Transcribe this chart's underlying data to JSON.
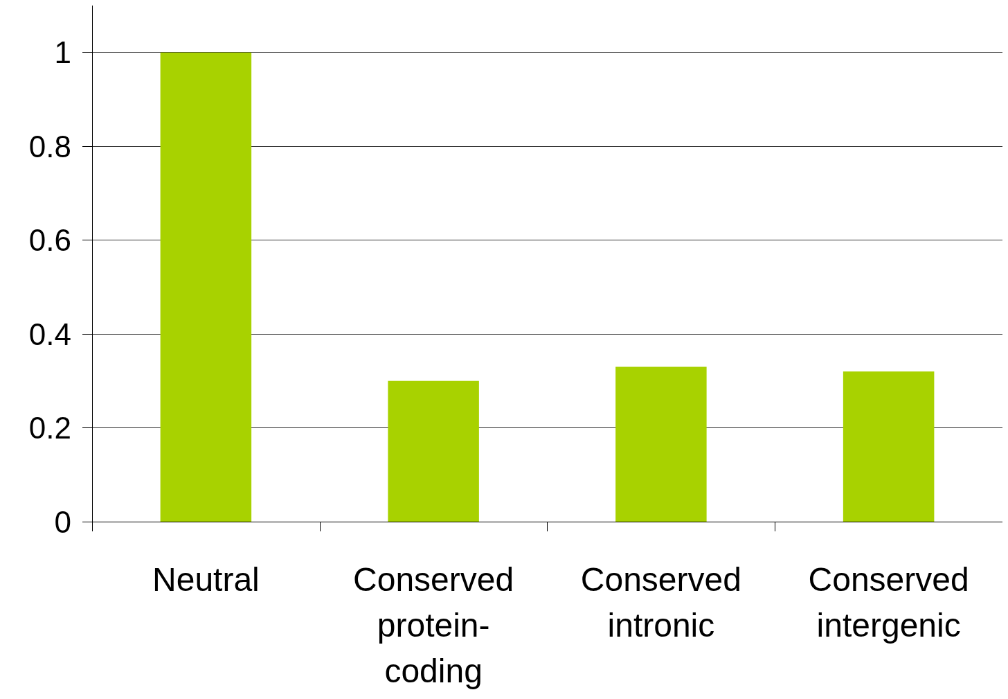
{
  "chart_data": {
    "type": "bar",
    "categories": [
      "Neutral",
      "Conserved protein-coding",
      "Conserved intronic",
      "Conserved intergenic"
    ],
    "values": [
      1.0,
      0.3,
      0.33,
      0.32
    ],
    "color": "#a8d200",
    "ylim": [
      0,
      1.1
    ],
    "yticks": [
      0,
      0.2,
      0.4,
      0.6,
      0.8,
      1
    ],
    "grid": "y"
  }
}
